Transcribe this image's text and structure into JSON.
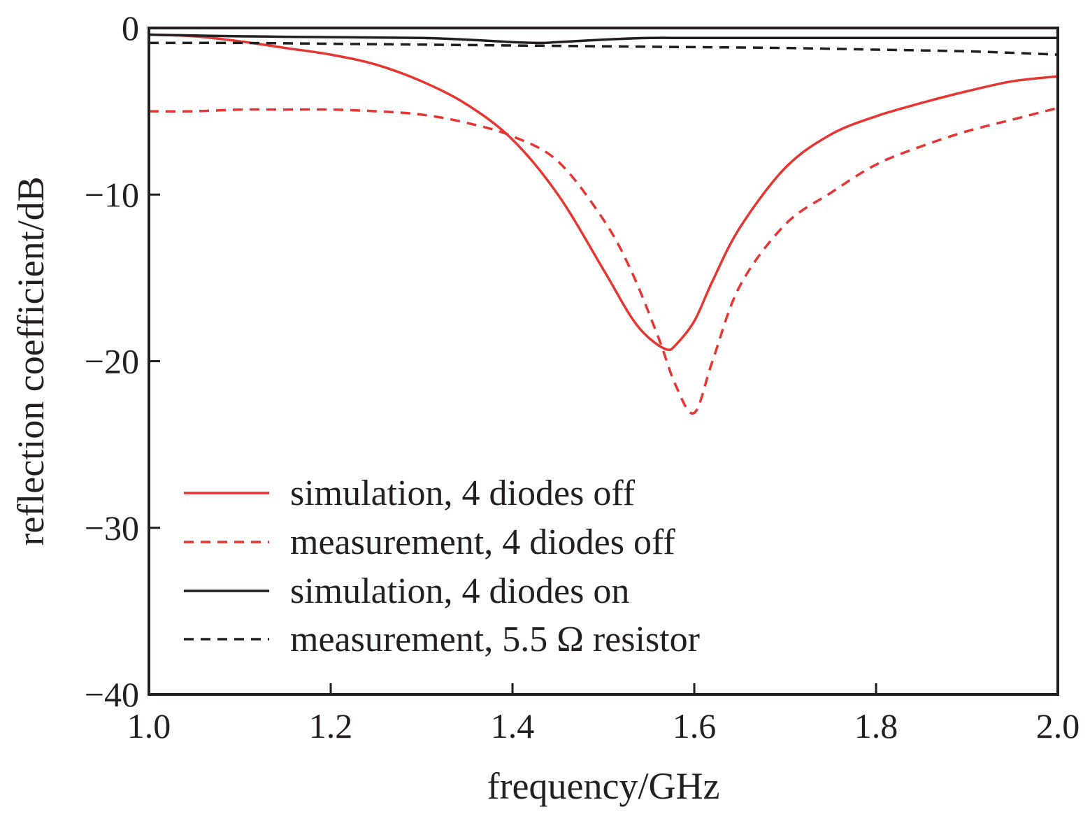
{
  "chart_data": {
    "type": "line",
    "xlabel": "frequency/GHz",
    "ylabel": "reflection coefficient/dB",
    "xlim": [
      1.0,
      2.0
    ],
    "ylim": [
      -40,
      0
    ],
    "xticks": [
      1.0,
      1.2,
      1.4,
      1.6,
      1.8,
      2.0
    ],
    "xtick_labels": [
      "1.0",
      "1.2",
      "1.4",
      "1.6",
      "1.8",
      "2.0"
    ],
    "yticks": [
      0,
      -10,
      -20,
      -30,
      -40
    ],
    "ytick_labels": [
      "0",
      "−10",
      "−20",
      "−30",
      "−40"
    ],
    "grid": false,
    "legend_position": "bottom-left",
    "series": [
      {
        "name": "simulation, 4 diodes off",
        "color": "#e63632",
        "dash": "solid",
        "x": [
          1.0,
          1.05,
          1.1,
          1.15,
          1.2,
          1.25,
          1.3,
          1.35,
          1.4,
          1.45,
          1.5,
          1.53,
          1.55,
          1.57,
          1.58,
          1.6,
          1.62,
          1.65,
          1.7,
          1.75,
          1.8,
          1.85,
          1.9,
          1.95,
          2.0
        ],
        "y": [
          -0.4,
          -0.5,
          -0.8,
          -1.2,
          -1.6,
          -2.2,
          -3.2,
          -4.6,
          -6.7,
          -10.0,
          -14.5,
          -17.3,
          -18.6,
          -19.3,
          -19.0,
          -17.6,
          -15.2,
          -12.0,
          -8.4,
          -6.4,
          -5.3,
          -4.5,
          -3.8,
          -3.2,
          -2.9
        ]
      },
      {
        "name": "measurement, 4 diodes off",
        "color": "#e63632",
        "dash": "dashed",
        "x": [
          1.0,
          1.05,
          1.1,
          1.15,
          1.2,
          1.25,
          1.3,
          1.35,
          1.4,
          1.45,
          1.5,
          1.53,
          1.56,
          1.58,
          1.6,
          1.62,
          1.65,
          1.7,
          1.75,
          1.8,
          1.85,
          1.9,
          1.95,
          2.0
        ],
        "y": [
          -5.0,
          -5.0,
          -4.9,
          -4.9,
          -4.9,
          -5.0,
          -5.2,
          -5.7,
          -6.5,
          -8.0,
          -11.5,
          -14.5,
          -18.5,
          -21.5,
          -23.1,
          -20.0,
          -15.5,
          -11.8,
          -9.9,
          -8.2,
          -7.1,
          -6.2,
          -5.5,
          -4.8
        ]
      },
      {
        "name": "simulation, 4 diodes on",
        "color": "#231f20",
        "dash": "solid",
        "x": [
          1.0,
          1.1,
          1.2,
          1.3,
          1.35,
          1.4,
          1.43,
          1.45,
          1.5,
          1.55,
          1.6,
          1.7,
          1.8,
          1.9,
          2.0
        ],
        "y": [
          -0.4,
          -0.5,
          -0.55,
          -0.6,
          -0.7,
          -0.85,
          -0.9,
          -0.85,
          -0.7,
          -0.6,
          -0.6,
          -0.6,
          -0.6,
          -0.6,
          -0.6
        ]
      },
      {
        "name": "measurement, 5.5 Ω resistor",
        "color": "#231f20",
        "dash": "dashed",
        "x": [
          1.0,
          1.1,
          1.2,
          1.3,
          1.4,
          1.5,
          1.6,
          1.7,
          1.8,
          1.9,
          2.0
        ],
        "y": [
          -0.9,
          -0.9,
          -0.95,
          -1.0,
          -1.05,
          -1.1,
          -1.15,
          -1.2,
          -1.3,
          -1.4,
          -1.6
        ]
      }
    ]
  }
}
